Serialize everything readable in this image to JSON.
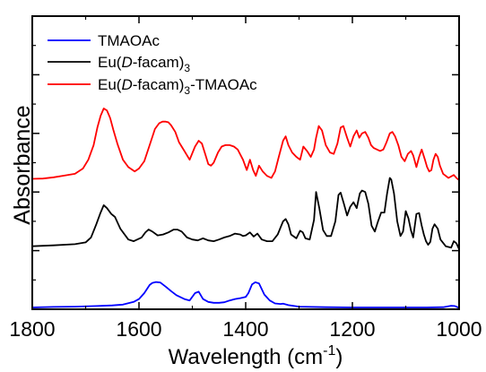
{
  "chart_data": {
    "type": "line",
    "title": "",
    "xlabel": "Wavelength (cm",
    "xlabel_superscript": "-1",
    "xlabel_suffix": ")",
    "ylabel": "Absorbance",
    "x_axis_reversed": true,
    "xlim": [
      1800,
      1000
    ],
    "ylim": [
      0,
      1
    ],
    "x_ticks": [
      1800,
      1600,
      1400,
      1200,
      1000
    ],
    "y_tick_labels_shown": false,
    "grid": false,
    "legend_placement": "top-left",
    "legend": [
      {
        "text": "TMAOAc",
        "color": "#0000ff"
      },
      {
        "pre": "Eu(",
        "ital": "D",
        "mid": "-facam)",
        "sub": "3",
        "post": "",
        "color": "#000000"
      },
      {
        "pre": "Eu(",
        "ital": "D",
        "mid": "-facam)",
        "sub": "3",
        "post": "-TMAOAc",
        "color": "#ff0000"
      }
    ],
    "series": [
      {
        "color": "#0000ff",
        "x": [
          1800,
          1760,
          1720,
          1680,
          1650,
          1630,
          1610,
          1600,
          1590,
          1580,
          1575,
          1568,
          1560,
          1550,
          1540,
          1530,
          1515,
          1505,
          1495,
          1488,
          1480,
          1470,
          1460,
          1450,
          1440,
          1430,
          1420,
          1410,
          1400,
          1395,
          1388,
          1382,
          1375,
          1365,
          1355,
          1345,
          1335,
          1330,
          1320,
          1300,
          1250,
          1200,
          1150,
          1100,
          1060,
          1030,
          1015,
          1008,
          1000
        ],
        "y": [
          0.006,
          0.008,
          0.009,
          0.011,
          0.013,
          0.016,
          0.025,
          0.035,
          0.055,
          0.083,
          0.09,
          0.093,
          0.091,
          0.077,
          0.062,
          0.048,
          0.035,
          0.03,
          0.055,
          0.06,
          0.035,
          0.025,
          0.022,
          0.022,
          0.024,
          0.03,
          0.035,
          0.038,
          0.042,
          0.055,
          0.085,
          0.092,
          0.088,
          0.05,
          0.03,
          0.02,
          0.018,
          0.019,
          0.014,
          0.009,
          0.007,
          0.006,
          0.006,
          0.006,
          0.006,
          0.007,
          0.012,
          0.011,
          0.005
        ]
      },
      {
        "color": "#000000",
        "x": [
          1800,
          1760,
          1720,
          1700,
          1690,
          1680,
          1672,
          1666,
          1660,
          1652,
          1645,
          1635,
          1620,
          1610,
          1595,
          1588,
          1582,
          1575,
          1565,
          1555,
          1545,
          1535,
          1528,
          1520,
          1510,
          1500,
          1490,
          1480,
          1470,
          1460,
          1450,
          1440,
          1430,
          1420,
          1410,
          1405,
          1400,
          1392,
          1385,
          1378,
          1370,
          1360,
          1350,
          1340,
          1330,
          1325,
          1320,
          1315,
          1305,
          1298,
          1293,
          1288,
          1280,
          1272,
          1268,
          1262,
          1255,
          1248,
          1240,
          1232,
          1226,
          1222,
          1216,
          1210,
          1204,
          1198,
          1192,
          1186,
          1182,
          1176,
          1170,
          1164,
          1158,
          1152,
          1146,
          1140,
          1135,
          1130,
          1127,
          1122,
          1116,
          1110,
          1105,
          1100,
          1095,
          1090,
          1086,
          1080,
          1075,
          1070,
          1066,
          1062,
          1058,
          1054,
          1050,
          1046,
          1040,
          1035,
          1025,
          1015,
          1010,
          1005,
          1000
        ],
        "y": [
          0.215,
          0.218,
          0.222,
          0.228,
          0.245,
          0.29,
          0.33,
          0.355,
          0.345,
          0.325,
          0.315,
          0.275,
          0.238,
          0.232,
          0.245,
          0.262,
          0.272,
          0.265,
          0.252,
          0.255,
          0.262,
          0.272,
          0.272,
          0.265,
          0.245,
          0.238,
          0.235,
          0.242,
          0.235,
          0.232,
          0.238,
          0.245,
          0.25,
          0.258,
          0.255,
          0.25,
          0.252,
          0.262,
          0.248,
          0.258,
          0.238,
          0.232,
          0.232,
          0.255,
          0.3,
          0.308,
          0.29,
          0.255,
          0.242,
          0.268,
          0.262,
          0.242,
          0.238,
          0.305,
          0.4,
          0.345,
          0.27,
          0.25,
          0.25,
          0.3,
          0.39,
          0.398,
          0.36,
          0.32,
          0.35,
          0.365,
          0.345,
          0.395,
          0.405,
          0.4,
          0.36,
          0.285,
          0.265,
          0.3,
          0.33,
          0.33,
          0.395,
          0.448,
          0.442,
          0.395,
          0.3,
          0.25,
          0.265,
          0.335,
          0.31,
          0.268,
          0.245,
          0.325,
          0.328,
          0.285,
          0.255,
          0.232,
          0.22,
          0.23,
          0.275,
          0.29,
          0.275,
          0.238,
          0.215,
          0.21,
          0.232,
          0.225,
          0.205
        ]
      },
      {
        "color": "#ff0000",
        "x": [
          1800,
          1780,
          1760,
          1740,
          1720,
          1705,
          1695,
          1685,
          1678,
          1672,
          1666,
          1660,
          1654,
          1648,
          1640,
          1630,
          1620,
          1608,
          1600,
          1590,
          1580,
          1570,
          1562,
          1556,
          1550,
          1545,
          1540,
          1532,
          1525,
          1515,
          1505,
          1495,
          1488,
          1482,
          1476,
          1470,
          1465,
          1460,
          1452,
          1445,
          1438,
          1430,
          1422,
          1415,
          1405,
          1398,
          1392,
          1386,
          1381,
          1375,
          1368,
          1360,
          1352,
          1345,
          1338,
          1330,
          1325,
          1320,
          1313,
          1305,
          1298,
          1292,
          1285,
          1278,
          1272,
          1268,
          1263,
          1257,
          1250,
          1242,
          1235,
          1228,
          1222,
          1217,
          1210,
          1204,
          1198,
          1192,
          1187,
          1182,
          1176,
          1170,
          1165,
          1160,
          1154,
          1148,
          1142,
          1136,
          1130,
          1125,
          1120,
          1114,
          1108,
          1102,
          1096,
          1090,
          1086,
          1080,
          1075,
          1070,
          1064,
          1060,
          1056,
          1052,
          1048,
          1044,
          1040,
          1036,
          1030,
          1020,
          1010,
          1005,
          1000
        ],
        "y": [
          0.445,
          0.446,
          0.45,
          0.456,
          0.462,
          0.48,
          0.51,
          0.56,
          0.62,
          0.66,
          0.685,
          0.678,
          0.652,
          0.612,
          0.562,
          0.51,
          0.485,
          0.47,
          0.48,
          0.505,
          0.56,
          0.615,
          0.635,
          0.64,
          0.64,
          0.638,
          0.628,
          0.605,
          0.57,
          0.54,
          0.51,
          0.555,
          0.575,
          0.565,
          0.53,
          0.495,
          0.49,
          0.5,
          0.535,
          0.555,
          0.56,
          0.56,
          0.555,
          0.545,
          0.51,
          0.475,
          0.51,
          0.475,
          0.455,
          0.49,
          0.47,
          0.455,
          0.448,
          0.47,
          0.52,
          0.575,
          0.59,
          0.56,
          0.535,
          0.52,
          0.51,
          0.555,
          0.54,
          0.52,
          0.545,
          0.585,
          0.625,
          0.61,
          0.56,
          0.535,
          0.53,
          0.565,
          0.62,
          0.625,
          0.585,
          0.555,
          0.59,
          0.61,
          0.585,
          0.6,
          0.605,
          0.585,
          0.56,
          0.55,
          0.545,
          0.54,
          0.545,
          0.57,
          0.6,
          0.605,
          0.59,
          0.56,
          0.52,
          0.505,
          0.53,
          0.54,
          0.525,
          0.485,
          0.52,
          0.545,
          0.51,
          0.485,
          0.47,
          0.475,
          0.51,
          0.53,
          0.52,
          0.49,
          0.462,
          0.448,
          0.458,
          0.448,
          0.44
        ]
      }
    ]
  }
}
